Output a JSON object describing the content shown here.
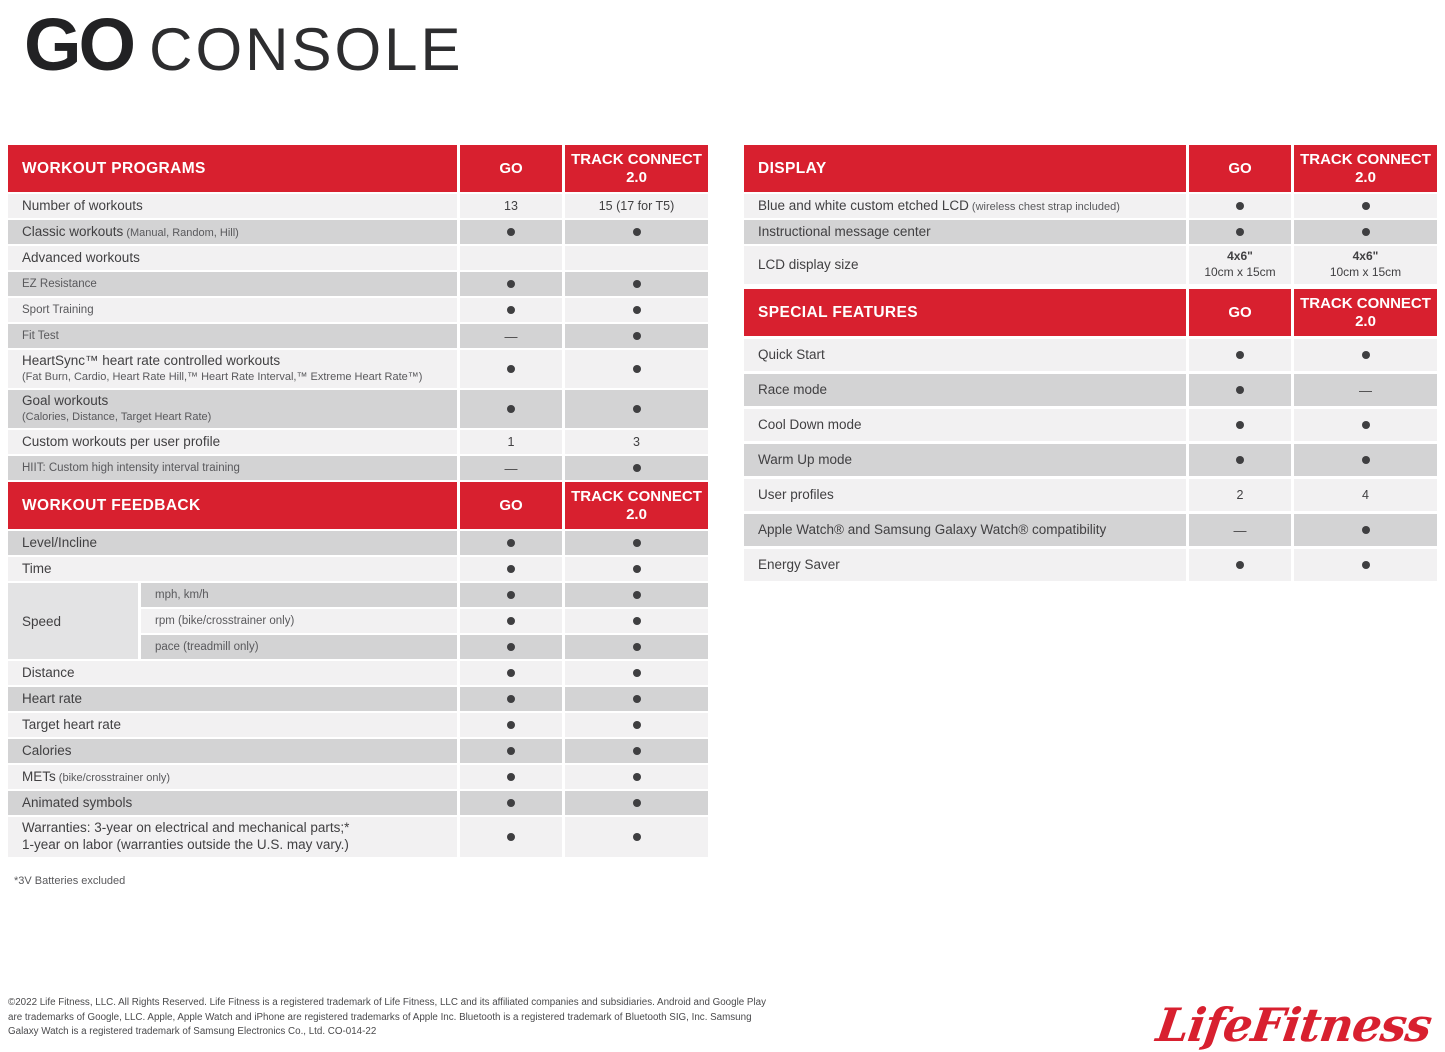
{
  "page": {
    "title_bold": "GO",
    "title_light": "CONSOLE",
    "footnote": "*3V Batteries excluded",
    "footer_legal": "©2022 Life Fitness, LLC. All Rights Reserved. Life Fitness is a registered trademark of Life Fitness, LLC and its affiliated companies and subsidiaries. Android and Google Play are trademarks of Google, LLC. Apple, Apple Watch and iPhone are registered trademarks of Apple Inc. Bluetooth is a registered trademark of Bluetooth SIG, Inc. Samsung Galaxy Watch is a registered trademark of Samsung Electronics Co., Ltd. CO-014-22",
    "logo_text": "LifeFitness",
    "colors": {
      "brand_red": "#D8202F",
      "row_gray": "#D3D3D4",
      "row_white": "#F2F1F2",
      "text_dark": "#414042",
      "text_muted": "#59595c"
    }
  },
  "tables": {
    "workout_programs": {
      "title": "WORKOUT PROGRAMS",
      "col_go": "GO",
      "col_track": "TRACK CONNECT 2.0",
      "rows": [
        {
          "label": "Number of workouts",
          "go": "13",
          "track": "15 (17 for T5)",
          "shade": "white"
        },
        {
          "label": "Classic workouts",
          "note_inline": "(Manual, Random, Hill)",
          "go": "dot",
          "track": "dot",
          "shade": "gray"
        },
        {
          "label": "Advanced workouts",
          "section": true,
          "go": "",
          "track": "",
          "shade": "white"
        },
        {
          "label": "EZ Resistance",
          "small": true,
          "go": "dot",
          "track": "dot",
          "shade": "gray"
        },
        {
          "label": "Sport Training",
          "small": true,
          "go": "dot",
          "track": "dot",
          "shade": "white"
        },
        {
          "label": "Fit Test",
          "small": true,
          "go": "dash",
          "track": "dot",
          "shade": "gray"
        },
        {
          "label": "HeartSync™ heart rate controlled workouts",
          "note_below": "(Fat Burn, Cardio, Heart Rate Hill,™ Heart Rate Interval,™ Extreme Heart Rate™)",
          "go": "dot",
          "track": "dot",
          "shade": "white"
        },
        {
          "label": "Goal workouts",
          "note_below": "(Calories, Distance, Target Heart Rate)",
          "go": "dot",
          "track": "dot",
          "shade": "gray"
        },
        {
          "label": "Custom workouts per user profile",
          "go": "1",
          "track": "3",
          "shade": "white"
        },
        {
          "label": "HIIT: Custom high intensity interval training",
          "small": true,
          "go": "dash",
          "track": "dot",
          "shade": "gray"
        }
      ]
    },
    "workout_feedback": {
      "title": "WORKOUT FEEDBACK",
      "col_go": "GO",
      "col_track": "TRACK CONNECT 2.0",
      "rows": [
        {
          "label": "Level/Incline",
          "go": "dot",
          "track": "dot",
          "shade": "gray"
        },
        {
          "label": "Time",
          "go": "dot",
          "track": "dot",
          "shade": "white"
        },
        {
          "group": "Speed",
          "subrows": [
            {
              "label": "mph, km/h",
              "go": "dot",
              "track": "dot",
              "shade": "gray"
            },
            {
              "label": "rpm (bike/crosstrainer only)",
              "go": "dot",
              "track": "dot",
              "shade": "white"
            },
            {
              "label": "pace (treadmill only)",
              "go": "dot",
              "track": "dot",
              "shade": "gray"
            }
          ]
        },
        {
          "label": "Distance",
          "go": "dot",
          "track": "dot",
          "shade": "white"
        },
        {
          "label": "Heart rate",
          "go": "dot",
          "track": "dot",
          "shade": "gray"
        },
        {
          "label": "Target heart rate",
          "go": "dot",
          "track": "dot",
          "shade": "white"
        },
        {
          "label": "Calories",
          "go": "dot",
          "track": "dot",
          "shade": "gray"
        },
        {
          "label": "METs",
          "note_inline": "(bike/crosstrainer only)",
          "go": "dot",
          "track": "dot",
          "shade": "white"
        },
        {
          "label": "Animated symbols",
          "go": "dot",
          "track": "dot",
          "shade": "gray"
        },
        {
          "label": "Warranties: 3-year on electrical and mechanical parts;*",
          "line2": "1-year on labor (warranties outside the U.S. may vary.)",
          "go": "dot",
          "track": "dot",
          "shade": "white"
        }
      ]
    },
    "display": {
      "title": "DISPLAY",
      "col_go": "GO",
      "col_track": "TRACK CONNECT 2.0",
      "rows": [
        {
          "label": "Blue and white custom etched LCD",
          "note_inline": "(wireless chest strap included)",
          "go": "dot",
          "track": "dot",
          "shade": "white"
        },
        {
          "label": "Instructional message center",
          "go": "dot",
          "track": "dot",
          "shade": "gray"
        },
        {
          "label": "LCD display size",
          "go": [
            "4x6\"",
            "10cm x 15cm"
          ],
          "track": [
            "4x6\"",
            "10cm x 15cm"
          ],
          "shade": "white"
        }
      ]
    },
    "special_features": {
      "title": "SPECIAL FEATURES",
      "col_go": "GO",
      "col_track": "TRACK CONNECT 2.0",
      "rows": [
        {
          "label": "Quick Start",
          "go": "dot",
          "track": "dot",
          "shade": "white"
        },
        {
          "label": "Race mode",
          "go": "dot",
          "track": "dash",
          "shade": "gray"
        },
        {
          "label": "Cool Down mode",
          "go": "dot",
          "track": "dot",
          "shade": "white"
        },
        {
          "label": "Warm Up mode",
          "go": "dot",
          "track": "dot",
          "shade": "gray"
        },
        {
          "label": "User profiles",
          "go": "2",
          "track": "4",
          "shade": "white"
        },
        {
          "label": "Apple Watch® and Samsung Galaxy Watch® compatibility",
          "go": "dash",
          "track": "dot",
          "shade": "gray"
        },
        {
          "label": "Energy Saver",
          "go": "dot",
          "track": "dot",
          "shade": "white"
        }
      ]
    }
  }
}
